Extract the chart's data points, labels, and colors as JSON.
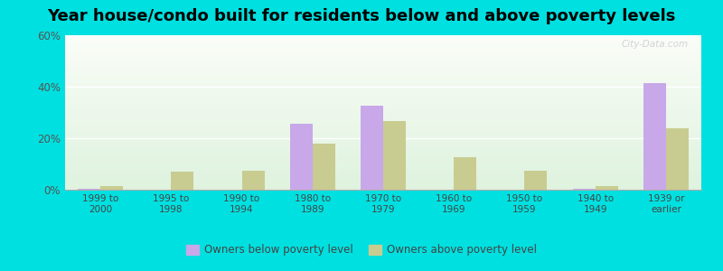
{
  "title": "Year house/condo built for residents below and above poverty levels",
  "categories": [
    "1999 to\n2000",
    "1995 to\n1998",
    "1990 to\n1994",
    "1980 to\n1989",
    "1970 to\n1979",
    "1960 to\n1969",
    "1950 to\n1959",
    "1940 to\n1949",
    "1939 or\nearlier"
  ],
  "below_poverty": [
    0.5,
    0.0,
    0.0,
    25.5,
    32.5,
    0.0,
    0.0,
    0.5,
    41.5
  ],
  "above_poverty": [
    1.5,
    7.0,
    7.5,
    18.0,
    26.5,
    12.5,
    7.5,
    1.5,
    24.0
  ],
  "below_color": "#c8a8e8",
  "above_color": "#c8cc90",
  "ylim": [
    0,
    60
  ],
  "yticks": [
    0,
    20,
    40,
    60
  ],
  "ytick_labels": [
    "0%",
    "20%",
    "40%",
    "60%"
  ],
  "outer_bg": "#00e0e0",
  "title_fontsize": 13,
  "legend_below_label": "Owners below poverty level",
  "legend_above_label": "Owners above poverty level",
  "watermark": "City-Data.com"
}
